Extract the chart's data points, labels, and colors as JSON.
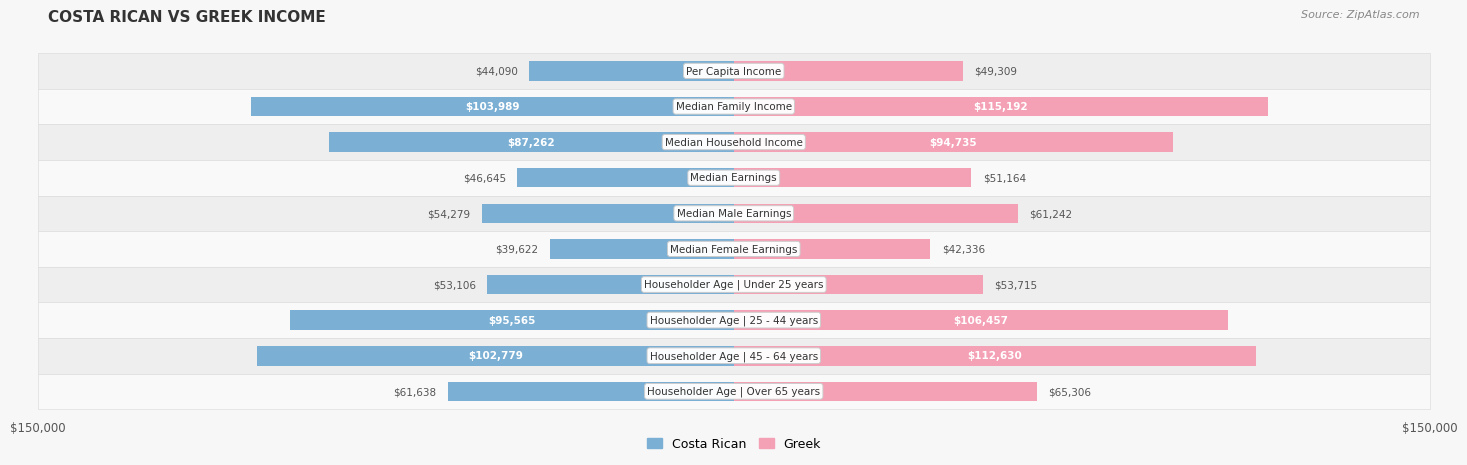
{
  "title": "COSTA RICAN VS GREEK INCOME",
  "source": "Source: ZipAtlas.com",
  "categories": [
    "Per Capita Income",
    "Median Family Income",
    "Median Household Income",
    "Median Earnings",
    "Median Male Earnings",
    "Median Female Earnings",
    "Householder Age | Under 25 years",
    "Householder Age | 25 - 44 years",
    "Householder Age | 45 - 64 years",
    "Householder Age | Over 65 years"
  ],
  "costa_rican": [
    44090,
    103989,
    87262,
    46645,
    54279,
    39622,
    53106,
    95565,
    102779,
    61638
  ],
  "greek": [
    49309,
    115192,
    94735,
    51164,
    61242,
    42336,
    53715,
    106457,
    112630,
    65306
  ],
  "costa_rican_labels": [
    "$44,090",
    "$103,989",
    "$87,262",
    "$46,645",
    "$54,279",
    "$39,622",
    "$53,106",
    "$95,565",
    "$102,779",
    "$61,638"
  ],
  "greek_labels": [
    "$49,309",
    "$115,192",
    "$94,735",
    "$51,164",
    "$61,242",
    "$42,336",
    "$53,715",
    "$106,457",
    "$112,630",
    "$65,306"
  ],
  "max_val": 150000,
  "bar_color_cr": "#7bafd4",
  "bar_color_gr": "#f4a0b5",
  "bg_color": "#f7f7f7",
  "row_bg_even": "#eeeeee",
  "row_bg_odd": "#f9f9f9",
  "row_border": "#dddddd",
  "legend_cr": "Costa Rican",
  "legend_gr": "Greek",
  "inside_threshold_cr": 70000,
  "inside_threshold_gr": 70000,
  "title_fontsize": 11,
  "source_fontsize": 8,
  "label_fontsize": 7.5,
  "cat_fontsize": 7.5,
  "tick_fontsize": 8.5
}
